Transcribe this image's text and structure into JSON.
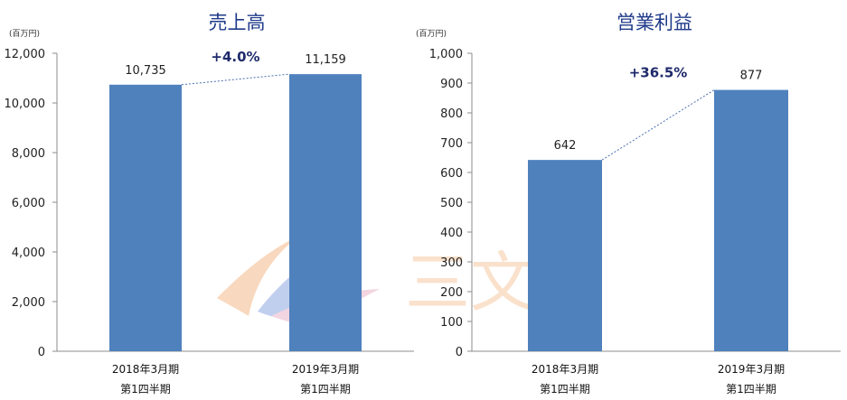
{
  "chart_data": [
    {
      "type": "bar",
      "title": "売上高",
      "unit": "(百万円)",
      "categories": [
        [
          "2018年3月期",
          "第1四半期"
        ],
        [
          "2019年3月期",
          "第1四半期"
        ]
      ],
      "values": [
        10735,
        11159
      ],
      "data_labels": [
        "10,735",
        "11,159"
      ],
      "growth_label": "+4.0%",
      "ylim": [
        0,
        12000
      ],
      "yticks": [
        0,
        2000,
        4000,
        6000,
        8000,
        10000,
        12000
      ],
      "ytick_labels": [
        "0",
        "2,000",
        "4,000",
        "6,000",
        "8,000",
        "10,000",
        "12,000"
      ],
      "grid": false,
      "bar_color": "#4f81bd"
    },
    {
      "type": "bar",
      "title": "営業利益",
      "unit": "(百万円)",
      "categories": [
        [
          "2018年3月期",
          "第1四半期"
        ],
        [
          "2019年3月期",
          "第1四半期"
        ]
      ],
      "values": [
        642,
        877
      ],
      "data_labels": [
        "642",
        "877"
      ],
      "growth_label": "+36.5%",
      "ylim": [
        0,
        1000
      ],
      "yticks": [
        0,
        100,
        200,
        300,
        400,
        500,
        600,
        700,
        800,
        900,
        1000
      ],
      "ytick_labels": [
        "0",
        "100",
        "200",
        "300",
        "400",
        "500",
        "600",
        "700",
        "800",
        "900",
        "1,000"
      ],
      "grid": false,
      "bar_color": "#4f81bd"
    }
  ],
  "watermark": {
    "text": "三文娱",
    "colors": [
      "#f6c9a3",
      "#9fb8e8"
    ]
  }
}
